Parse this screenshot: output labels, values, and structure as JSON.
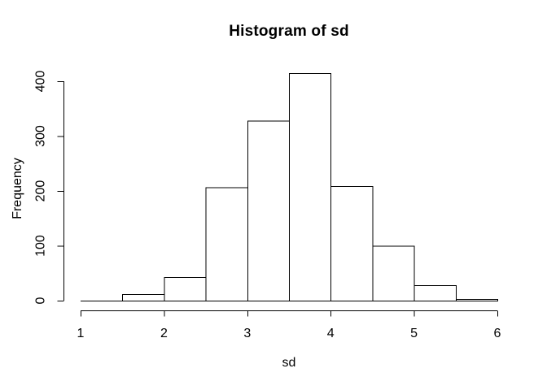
{
  "chart_data": {
    "type": "bar",
    "subtype": "histogram",
    "title": "Histogram of sd",
    "xlabel": "sd",
    "ylabel": "Frequency",
    "breaks": [
      1,
      1.5,
      2,
      2.5,
      3,
      3.5,
      4,
      4.5,
      5,
      5.5,
      6
    ],
    "counts": [
      0,
      12,
      43,
      207,
      328,
      415,
      209,
      100,
      28,
      3
    ],
    "x_ticks": [
      1,
      2,
      3,
      4,
      5,
      6
    ],
    "y_ticks": [
      0,
      100,
      200,
      300,
      400
    ],
    "xlim": [
      1,
      6
    ],
    "ylim": [
      0,
      400
    ],
    "grid": false,
    "legend": null,
    "colors": {
      "background": "#ffffff",
      "bar_fill": "#ffffff",
      "bar_stroke": "#000000",
      "axis": "#000000",
      "text": "#000000"
    }
  }
}
